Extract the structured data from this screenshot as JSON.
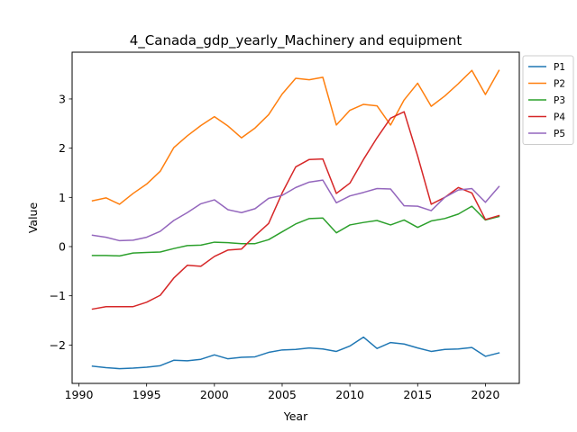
{
  "chart_data": {
    "type": "line",
    "title": "4_Canada_gdp_yearly_Machinery and equipment",
    "xlabel": "Year",
    "ylabel": "Value",
    "xlim": [
      1989.5,
      2022.5
    ],
    "ylim": [
      -2.78,
      3.95
    ],
    "xticks": [
      1990,
      1995,
      2000,
      2005,
      2010,
      2015,
      2020
    ],
    "xtick_labels": [
      "1990",
      "1995",
      "2000",
      "2005",
      "2010",
      "2015",
      "2020"
    ],
    "yticks": [
      -2,
      -1,
      0,
      1,
      2,
      3
    ],
    "ytick_labels": [
      "−2",
      "−1",
      "0",
      "1",
      "2",
      "3"
    ],
    "grid": false,
    "legend_position": "outside-top-right",
    "x": [
      1991,
      1992,
      1993,
      1994,
      1995,
      1996,
      1997,
      1998,
      1999,
      2000,
      2001,
      2002,
      2003,
      2004,
      2005,
      2006,
      2007,
      2008,
      2009,
      2010,
      2011,
      2012,
      2013,
      2014,
      2015,
      2016,
      2017,
      2018,
      2019,
      2020,
      2021
    ],
    "series": [
      {
        "name": "P1",
        "color": "#1f77b4",
        "values": [
          -2.43,
          -2.46,
          -2.48,
          -2.47,
          -2.45,
          -2.42,
          -2.31,
          -2.32,
          -2.29,
          -2.2,
          -2.28,
          -2.25,
          -2.24,
          -2.15,
          -2.1,
          -2.09,
          -2.06,
          -2.08,
          -2.13,
          -2.02,
          -1.84,
          -2.07,
          -1.95,
          -1.98,
          -2.06,
          -2.13,
          -2.09,
          -2.08,
          -2.05,
          -2.23,
          -2.16
        ]
      },
      {
        "name": "P2",
        "color": "#ff7f0e",
        "values": [
          0.93,
          0.99,
          0.86,
          1.08,
          1.27,
          1.53,
          2.01,
          2.25,
          2.46,
          2.64,
          2.45,
          2.21,
          2.41,
          2.68,
          3.1,
          3.42,
          3.39,
          3.44,
          2.47,
          2.77,
          2.89,
          2.86,
          2.47,
          2.98,
          3.32,
          2.85,
          3.06,
          3.31,
          3.58,
          3.09,
          3.58
        ]
      },
      {
        "name": "P3",
        "color": "#2ca02c",
        "values": [
          -0.18,
          -0.18,
          -0.19,
          -0.13,
          -0.12,
          -0.11,
          -0.04,
          0.02,
          0.03,
          0.09,
          0.08,
          0.06,
          0.06,
          0.14,
          0.3,
          0.46,
          0.57,
          0.58,
          0.28,
          0.44,
          0.49,
          0.53,
          0.44,
          0.54,
          0.39,
          0.52,
          0.57,
          0.66,
          0.82,
          0.54,
          0.61
        ]
      },
      {
        "name": "P4",
        "color": "#d62728",
        "values": [
          -1.27,
          -1.22,
          -1.22,
          -1.22,
          -1.13,
          -0.99,
          -0.64,
          -0.38,
          -0.4,
          -0.2,
          -0.07,
          -0.05,
          0.22,
          0.47,
          1.09,
          1.62,
          1.77,
          1.78,
          1.08,
          1.29,
          1.77,
          2.21,
          2.61,
          2.74,
          1.84,
          0.86,
          1.0,
          1.2,
          1.09,
          0.55,
          0.63
        ]
      },
      {
        "name": "P5",
        "color": "#9467bd",
        "values": [
          0.23,
          0.19,
          0.12,
          0.13,
          0.19,
          0.31,
          0.53,
          0.69,
          0.87,
          0.95,
          0.75,
          0.69,
          0.77,
          0.98,
          1.04,
          1.2,
          1.31,
          1.35,
          0.89,
          1.03,
          1.1,
          1.18,
          1.17,
          0.83,
          0.82,
          0.73,
          1.0,
          1.15,
          1.18,
          0.9,
          1.22
        ]
      }
    ]
  }
}
